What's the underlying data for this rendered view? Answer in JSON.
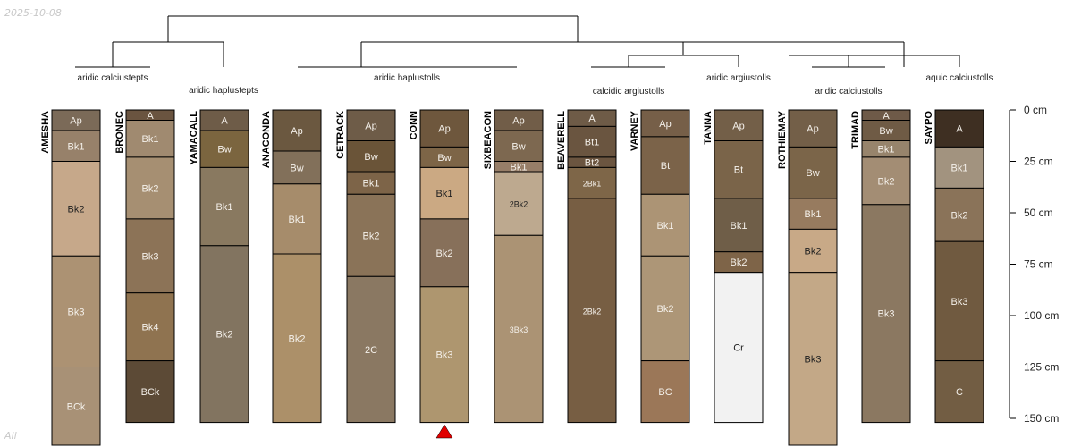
{
  "corner_labels": {
    "top_left": "2025-10-08",
    "bottom_left": "All"
  },
  "group_labels": [
    {
      "text": "aridic calciustepts"
    },
    {
      "text": "aridic haplustepts"
    },
    {
      "text": "aridic haplustolls"
    },
    {
      "text": "calcidic argiustolls"
    },
    {
      "text": "aridic argiustolls"
    },
    {
      "text": "aridic calciustolls"
    },
    {
      "text": "aquic calciustolls"
    }
  ],
  "depth_axis": {
    "unit": "cm",
    "ticks": [
      "0 cm",
      "25 cm",
      "50 cm",
      "75 cm",
      "100 cm",
      "125 cm",
      "150 cm"
    ],
    "tick_values": [
      0,
      25,
      50,
      75,
      100,
      125,
      150
    ]
  },
  "profiles": [
    {
      "name": "AMESHA",
      "horizons": [
        {
          "name": "Ap",
          "top": 0,
          "bottom": 10,
          "color": "#7b6a58"
        },
        {
          "name": "Bk1",
          "top": 10,
          "bottom": 25,
          "color": "#97816a"
        },
        {
          "name": "Bk2",
          "top": 25,
          "bottom": 71,
          "color": "#c6a88a"
        },
        {
          "name": "Bk3",
          "top": 71,
          "bottom": 125,
          "color": "#ac9273"
        },
        {
          "name": "BCk",
          "top": 125,
          "bottom": 165,
          "color": "#a89176"
        }
      ]
    },
    {
      "name": "BRONEC",
      "horizons": [
        {
          "name": "A",
          "top": 0,
          "bottom": 5,
          "color": "#6a5440"
        },
        {
          "name": "Bk1",
          "top": 5,
          "bottom": 23,
          "color": "#a08a70"
        },
        {
          "name": "Bk2",
          "top": 23,
          "bottom": 53,
          "color": "#a68f72"
        },
        {
          "name": "Bk3",
          "top": 53,
          "bottom": 89,
          "color": "#8c7357"
        },
        {
          "name": "Bk4",
          "top": 89,
          "bottom": 122,
          "color": "#8f7350"
        },
        {
          "name": "BCk",
          "top": 122,
          "bottom": 152,
          "color": "#5c4a36"
        }
      ]
    },
    {
      "name": "YAMACALL",
      "horizons": [
        {
          "name": "A",
          "top": 0,
          "bottom": 10,
          "color": "#6e5c48"
        },
        {
          "name": "Bw",
          "top": 10,
          "bottom": 28,
          "color": "#7b653f"
        },
        {
          "name": "Bk1",
          "top": 28,
          "bottom": 66,
          "color": "#897960"
        },
        {
          "name": "Bk2",
          "top": 66,
          "bottom": 152,
          "color": "#827460"
        }
      ]
    },
    {
      "name": "ANACONDA",
      "horizons": [
        {
          "name": "Ap",
          "top": 0,
          "bottom": 20,
          "color": "#6b5840"
        },
        {
          "name": "Bw",
          "top": 20,
          "bottom": 36,
          "color": "#82705a"
        },
        {
          "name": "Bk1",
          "top": 36,
          "bottom": 70,
          "color": "#a68c6b"
        },
        {
          "name": "Bk2",
          "top": 70,
          "bottom": 152,
          "color": "#ac9069"
        }
      ]
    },
    {
      "name": "CETRACK",
      "horizons": [
        {
          "name": "Ap",
          "top": 0,
          "bottom": 15,
          "color": "#6e5c48"
        },
        {
          "name": "Bw",
          "top": 15,
          "bottom": 30,
          "color": "#6a5438"
        },
        {
          "name": "Bk1",
          "top": 30,
          "bottom": 41,
          "color": "#7d6448"
        },
        {
          "name": "Bk2",
          "top": 41,
          "bottom": 81,
          "color": "#8a7358"
        },
        {
          "name": "2C",
          "top": 81,
          "bottom": 152,
          "color": "#8a7862"
        }
      ]
    },
    {
      "name": "CONN",
      "horizons": [
        {
          "name": "Ap",
          "top": 0,
          "bottom": 18,
          "color": "#6e573d"
        },
        {
          "name": "Bw",
          "top": 18,
          "bottom": 28,
          "color": "#7d6547"
        },
        {
          "name": "Bk1",
          "top": 28,
          "bottom": 53,
          "color": "#cba983"
        },
        {
          "name": "Bk2",
          "top": 53,
          "bottom": 86,
          "color": "#87705a"
        },
        {
          "name": "Bk3",
          "top": 86,
          "bottom": 152,
          "color": "#ae966f"
        }
      ]
    },
    {
      "name": "SIXBEACON",
      "horizons": [
        {
          "name": "Ap",
          "top": 0,
          "bottom": 10,
          "color": "#715d48"
        },
        {
          "name": "Bw",
          "top": 10,
          "bottom": 25,
          "color": "#7d6850"
        },
        {
          "name": "Bk1",
          "top": 25,
          "bottom": 30,
          "color": "#977e68"
        },
        {
          "name": "2Bk2",
          "top": 30,
          "bottom": 61,
          "color": "#bda98f"
        },
        {
          "name": "3Bk3",
          "top": 61,
          "bottom": 152,
          "color": "#ab9374"
        }
      ]
    },
    {
      "name": "BEAVERELL",
      "horizons": [
        {
          "name": "A",
          "top": 0,
          "bottom": 8,
          "color": "#6e5b47"
        },
        {
          "name": "Bt1",
          "top": 8,
          "bottom": 23,
          "color": "#6a5540"
        },
        {
          "name": "Bt2",
          "top": 23,
          "bottom": 28,
          "color": "#6b5540"
        },
        {
          "name": "2Bk1",
          "top": 28,
          "bottom": 43,
          "color": "#7e6648"
        },
        {
          "name": "2Bk2",
          "top": 43,
          "bottom": 152,
          "color": "#775e43"
        }
      ]
    },
    {
      "name": "VARNEY",
      "horizons": [
        {
          "name": "Ap",
          "top": 0,
          "bottom": 13,
          "color": "#765f48"
        },
        {
          "name": "Bt",
          "top": 13,
          "bottom": 41,
          "color": "#7b6349"
        },
        {
          "name": "Bk1",
          "top": 41,
          "bottom": 71,
          "color": "#ac9475"
        },
        {
          "name": "Bk2",
          "top": 71,
          "bottom": 122,
          "color": "#ad9677"
        },
        {
          "name": "BC",
          "top": 122,
          "bottom": 152,
          "color": "#9b7758"
        }
      ]
    },
    {
      "name": "TANNA",
      "horizons": [
        {
          "name": "Ap",
          "top": 0,
          "bottom": 15,
          "color": "#735f48"
        },
        {
          "name": "Bt",
          "top": 15,
          "bottom": 43,
          "color": "#7a6449"
        },
        {
          "name": "Bk1",
          "top": 43,
          "bottom": 69,
          "color": "#6f5e48"
        },
        {
          "name": "Bk2",
          "top": 69,
          "bottom": 79,
          "color": "#7e6448"
        },
        {
          "name": "Cr",
          "top": 79,
          "bottom": 152,
          "color": "#f2f2f2"
        }
      ]
    },
    {
      "name": "ROTHIEMAY",
      "horizons": [
        {
          "name": "Ap",
          "top": 0,
          "bottom": 18,
          "color": "#735f48"
        },
        {
          "name": "Bw",
          "top": 18,
          "bottom": 43,
          "color": "#7b6549"
        },
        {
          "name": "Bk1",
          "top": 43,
          "bottom": 58,
          "color": "#977b5f"
        },
        {
          "name": "Bk2",
          "top": 58,
          "bottom": 79,
          "color": "#c8a987"
        },
        {
          "name": "Bk3",
          "top": 79,
          "bottom": 165,
          "color": "#c3a887"
        }
      ]
    },
    {
      "name": "TRIMAD",
      "horizons": [
        {
          "name": "A",
          "top": 0,
          "bottom": 5,
          "color": "#6e5a48"
        },
        {
          "name": "Bw",
          "top": 5,
          "bottom": 15,
          "color": "#6f5b45"
        },
        {
          "name": "Bk1",
          "top": 15,
          "bottom": 23,
          "color": "#97846c"
        },
        {
          "name": "Bk2",
          "top": 23,
          "bottom": 46,
          "color": "#a38d74"
        },
        {
          "name": "Bk3",
          "top": 46,
          "bottom": 152,
          "color": "#8b7861"
        }
      ]
    },
    {
      "name": "SAYPO",
      "horizons": [
        {
          "name": "A",
          "top": 0,
          "bottom": 18,
          "color": "#3e2f22"
        },
        {
          "name": "Bk1",
          "top": 18,
          "bottom": 38,
          "color": "#a2937f"
        },
        {
          "name": "Bk2",
          "top": 38,
          "bottom": 64,
          "color": "#8a7359"
        },
        {
          "name": "Bk3",
          "top": 64,
          "bottom": 122,
          "color": "#705a40"
        },
        {
          "name": "C",
          "top": 122,
          "bottom": 152,
          "color": "#725d43"
        }
      ]
    }
  ],
  "marker": {
    "profile": "CONN",
    "color": "#e00000",
    "shape": "triangle"
  }
}
